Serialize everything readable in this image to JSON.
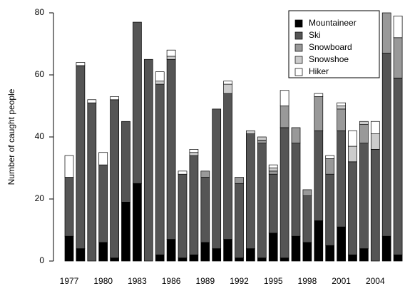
{
  "chart_data": {
    "type": "stacked_bar",
    "ylabel": "Number of caught people",
    "categories": [
      "1977",
      null,
      null,
      "1980",
      null,
      null,
      "1983",
      null,
      null,
      "1986",
      null,
      null,
      "1989",
      null,
      null,
      "1992",
      null,
      null,
      "1995",
      null,
      null,
      "1998",
      null,
      null,
      "2001",
      null,
      null,
      "2004",
      null,
      null
    ],
    "series": [
      {
        "name": "Mountaineer",
        "color": "#000000",
        "values": [
          8,
          4,
          0,
          6,
          1,
          19,
          25,
          0,
          2,
          7,
          1,
          2,
          6,
          4,
          7,
          1,
          4,
          1,
          9,
          1,
          8,
          6,
          13,
          5,
          11,
          2,
          4,
          0,
          8,
          2
        ]
      },
      {
        "name": "Ski",
        "color": "#555555",
        "values": [
          19,
          59,
          51,
          25,
          51,
          26,
          52,
          65,
          55,
          58,
          27,
          32,
          21,
          45,
          47,
          24,
          37,
          37,
          19,
          42,
          30,
          15,
          29,
          23,
          31,
          30,
          34,
          36,
          59,
          57
        ]
      },
      {
        "name": "Snowboard",
        "color": "#999999",
        "values": [
          0,
          0,
          0,
          0,
          0,
          0,
          0,
          0,
          0,
          0,
          0,
          0,
          2,
          0,
          0,
          2,
          0,
          1,
          1,
          7,
          5,
          2,
          11,
          5,
          7,
          0,
          6,
          0,
          13,
          13
        ]
      },
      {
        "name": "Snowshoe",
        "color": "#cccccc",
        "values": [
          0,
          0,
          0,
          0,
          0,
          0,
          0,
          0,
          1,
          1,
          0,
          1,
          0,
          0,
          3,
          0,
          1,
          1,
          1,
          0,
          0,
          0,
          0,
          0,
          1,
          5,
          1,
          5,
          0,
          0
        ]
      },
      {
        "name": "Hiker",
        "color": "#ffffff",
        "values": [
          7,
          1,
          1,
          4,
          1,
          0,
          0,
          0,
          3,
          2,
          1,
          1,
          0,
          0,
          1,
          0,
          0,
          0,
          1,
          5,
          0,
          0,
          1,
          1,
          1,
          5,
          0,
          4,
          0,
          7
        ]
      }
    ],
    "ylim": [
      0,
      80
    ],
    "yticks": [
      0,
      20,
      40,
      60,
      80
    ],
    "legend": "top-right"
  }
}
